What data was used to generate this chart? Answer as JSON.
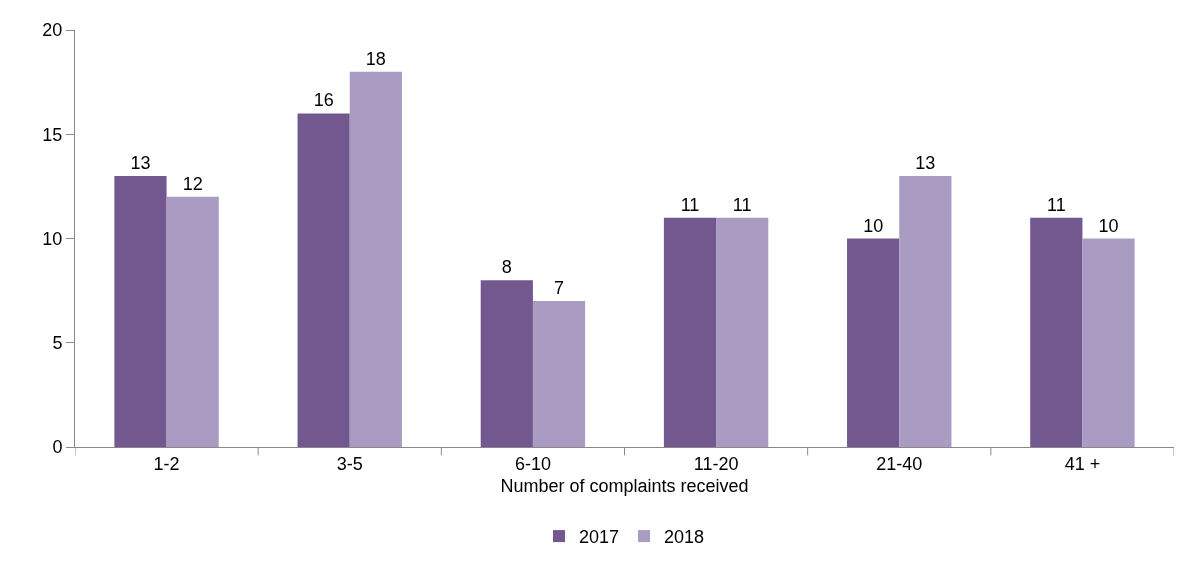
{
  "chart_data": {
    "type": "bar",
    "xlabel": "Number of complaints received",
    "categories": [
      "1-2",
      "3-5",
      "6-10",
      "11-20",
      "21-40",
      "41 +"
    ],
    "series": [
      {
        "name": "2017",
        "color": "#72588e",
        "values": [
          13,
          16,
          8,
          11,
          10,
          11
        ]
      },
      {
        "name": "2018",
        "color": "#a99bc1",
        "values": [
          12,
          18,
          7,
          11,
          13,
          10
        ]
      }
    ],
    "ylim": [
      0,
      20
    ],
    "yticks": [
      0,
      5,
      10,
      15,
      20
    ],
    "grid": false,
    "legend": "bottom",
    "data_labels": true
  }
}
